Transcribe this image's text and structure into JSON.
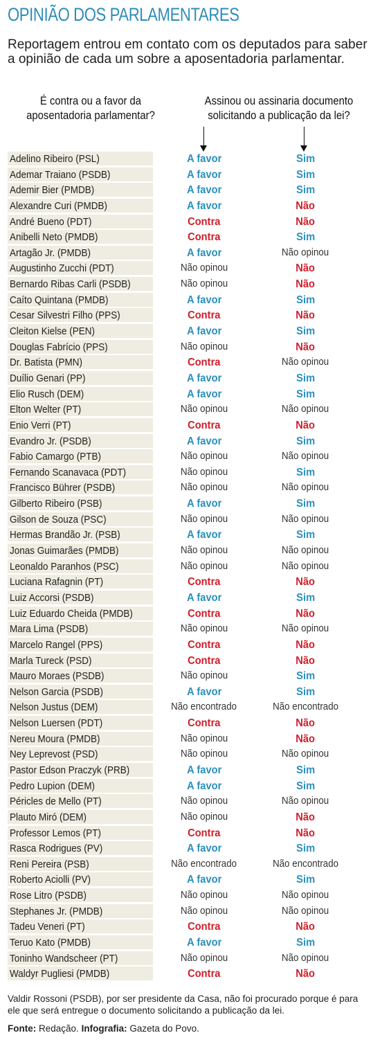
{
  "title": "OPINIÃO DOS PARLAMENTARES",
  "subtitle": "Reportagem entrou em contato com os deputados para saber a opinião de cada um sobre a aposentadoria parlamentar.",
  "question1": "É contra ou a favor da aposentadoria parlamentar?",
  "question2": "Assinou ou assinaria documento solicitando a publicação da lei?",
  "colors": {
    "accent": "#2a8fbd",
    "negative": "#d0202c",
    "row_bg": "#efece1"
  },
  "rows": [
    {
      "name": "Adelino Ribeiro (PSL)",
      "q1": "A favor",
      "q2": "Sim"
    },
    {
      "name": "Ademar Traiano (PSDB)",
      "q1": "A favor",
      "q2": "Sim"
    },
    {
      "name": "Ademir Bier (PMDB)",
      "q1": "A favor",
      "q2": "Sim"
    },
    {
      "name": "Alexandre Curi (PMDB)",
      "q1": "A favor",
      "q2": "Não"
    },
    {
      "name": "André Bueno (PDT)",
      "q1": "Contra",
      "q2": "Não"
    },
    {
      "name": "Anibelli Neto (PMDB)",
      "q1": "Contra",
      "q2": "Sim"
    },
    {
      "name": "Artagão Jr. (PMDB)",
      "q1": "A favor",
      "q2": "Não opinou"
    },
    {
      "name": "Augustinho Zucchi (PDT)",
      "q1": "Não opinou",
      "q2": "Não"
    },
    {
      "name": "Bernardo Ribas Carli (PSDB)",
      "q1": "Não opinou",
      "q2": "Não"
    },
    {
      "name": "Caíto Quintana (PMDB)",
      "q1": "A favor",
      "q2": "Sim"
    },
    {
      "name": "Cesar Silvestri Filho (PPS)",
      "q1": "Contra",
      "q2": "Não"
    },
    {
      "name": "Cleiton Kielse (PEN)",
      "q1": "A favor",
      "q2": "Sim"
    },
    {
      "name": "Douglas Fabrício (PPS)",
      "q1": "Não opinou",
      "q2": "Não"
    },
    {
      "name": "Dr. Batista (PMN)",
      "q1": "Contra",
      "q2": "Não opinou"
    },
    {
      "name": "Duílio Genari (PP)",
      "q1": "A favor",
      "q2": "Sim"
    },
    {
      "name": "Elio Rusch (DEM)",
      "q1": "A favor",
      "q2": "Sim"
    },
    {
      "name": "Elton Welter (PT)",
      "q1": "Não opinou",
      "q2": "Não opinou"
    },
    {
      "name": "Enio Verri (PT)",
      "q1": "Contra",
      "q2": "Não"
    },
    {
      "name": "Evandro Jr. (PSDB)",
      "q1": "A favor",
      "q2": "Sim"
    },
    {
      "name": "Fabio Camargo (PTB)",
      "q1": "Não opinou",
      "q2": "Não opinou"
    },
    {
      "name": "Fernando Scanavaca (PDT)",
      "q1": "Não opinou",
      "q2": "Sim"
    },
    {
      "name": "Francisco Bührer (PSDB)",
      "q1": "Não opinou",
      "q2": "Não opinou"
    },
    {
      "name": "Gilberto Ribeiro (PSB)",
      "q1": "A favor",
      "q2": "Sim"
    },
    {
      "name": "Gilson de Souza (PSC)",
      "q1": "Não opinou",
      "q2": "Não opinou"
    },
    {
      "name": "Hermas Brandão Jr. (PSB)",
      "q1": "A favor",
      "q2": "Sim"
    },
    {
      "name": "Jonas Guimarães (PMDB)",
      "q1": "Não opinou",
      "q2": "Não opinou"
    },
    {
      "name": "Leonaldo Paranhos (PSC)",
      "q1": "Não opinou",
      "q2": "Não opinou"
    },
    {
      "name": "Luciana Rafagnin (PT)",
      "q1": "Contra",
      "q2": "Não"
    },
    {
      "name": "Luiz Accorsi (PSDB)",
      "q1": "A favor",
      "q2": "Sim"
    },
    {
      "name": "Luiz Eduardo Cheida (PMDB)",
      "q1": "Contra",
      "q2": "Não"
    },
    {
      "name": "Mara Lima (PSDB)",
      "q1": "Não opinou",
      "q2": "Não opinou"
    },
    {
      "name": "Marcelo Rangel (PPS)",
      "q1": "Contra",
      "q2": "Não"
    },
    {
      "name": "Marla Tureck (PSD)",
      "q1": "Contra",
      "q2": "Não"
    },
    {
      "name": "Mauro Moraes (PSDB)",
      "q1": "Não opinou",
      "q2": "Sim"
    },
    {
      "name": "Nelson Garcia (PSDB)",
      "q1": "A favor",
      "q2": "Sim"
    },
    {
      "name": "Nelson Justus (DEM)",
      "q1": "Não encontrado",
      "q2": "Não encontrado"
    },
    {
      "name": "Nelson Luersen (PDT)",
      "q1": "Contra",
      "q2": "Não"
    },
    {
      "name": "Nereu Moura (PMDB)",
      "q1": "Não opinou",
      "q2": "Não"
    },
    {
      "name": "Ney Leprevost (PSD)",
      "q1": "Não opinou",
      "q2": "Não opinou"
    },
    {
      "name": "Pastor Edson Praczyk (PRB)",
      "q1": "A favor",
      "q2": "Sim"
    },
    {
      "name": "Pedro Lupion (DEM)",
      "q1": "A favor",
      "q2": "Sim"
    },
    {
      "name": "Péricles de Mello (PT)",
      "q1": "Não opinou",
      "q2": "Não opinou"
    },
    {
      "name": "Plauto Miró (DEM)",
      "q1": "Não opinou",
      "q2": "Não"
    },
    {
      "name": "Professor Lemos (PT)",
      "q1": "Contra",
      "q2": "Não"
    },
    {
      "name": "Rasca Rodrigues (PV)",
      "q1": "A favor",
      "q2": "Sim"
    },
    {
      "name": "Reni Pereira (PSB)",
      "q1": "Não encontrado",
      "q2": "Não encontrado"
    },
    {
      "name": "Roberto Aciolli (PV)",
      "q1": "A favor",
      "q2": "Sim"
    },
    {
      "name": "Rose Litro (PSDB)",
      "q1": "Não opinou",
      "q2": "Não opinou"
    },
    {
      "name": "Stephanes Jr. (PMDB)",
      "q1": "Não opinou",
      "q2": "Não opinou"
    },
    {
      "name": "Tadeu Veneri (PT)",
      "q1": "Contra",
      "q2": "Não"
    },
    {
      "name": "Teruo Kato (PMDB)",
      "q1": "A favor",
      "q2": "Sim"
    },
    {
      "name": "Toninho Wandscheer (PT)",
      "q1": "Não opinou",
      "q2": "Não opinou"
    },
    {
      "name": "Waldyr Pugliesi (PMDB)",
      "q1": "Contra",
      "q2": "Não"
    }
  ],
  "note": "Valdir Rossoni (PSDB), por ser presidente da Casa, não foi procurado porque é para ele que será entregue o documento solicitando a publicação da lei.",
  "source": {
    "label1": "Fonte:",
    "value1": "Redação.",
    "label2": "Infografia:",
    "value2": "Gazeta do Povo."
  }
}
